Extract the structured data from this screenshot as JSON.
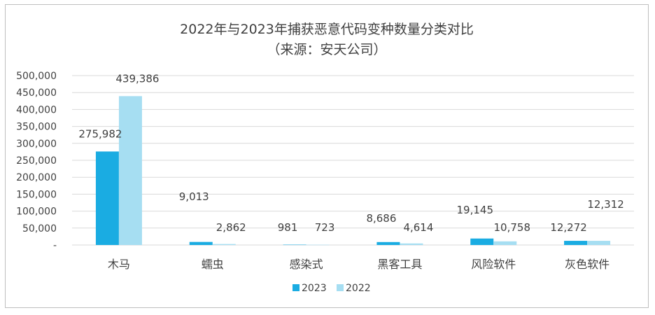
{
  "chart_data": {
    "type": "bar",
    "title": "2022年与2023年捕获恶意代码变种数量分类对比",
    "subtitle": "（来源：安天公司）",
    "categories": [
      "木马",
      "蠕虫",
      "感染式",
      "黑客工具",
      "风险软件",
      "灰色软件"
    ],
    "series": [
      {
        "name": "2023",
        "color": "#1aace2",
        "values": [
          275982,
          9013,
          981,
          8686,
          19145,
          12272
        ],
        "labels": [
          "275,982",
          "9,013",
          "981",
          "8,686",
          "19,145",
          "12,272"
        ]
      },
      {
        "name": "2022",
        "color": "#a6def2",
        "values": [
          439386,
          2862,
          723,
          4614,
          10758,
          12312
        ],
        "labels": [
          "439,386",
          "2,862",
          "723",
          "4,614",
          "10,758",
          "12,312"
        ]
      }
    ],
    "yticks": [
      0,
      50000,
      100000,
      150000,
      200000,
      250000,
      300000,
      350000,
      400000,
      450000,
      500000
    ],
    "ytick_labels": [
      "-",
      "50,000",
      "100,000",
      "150,000",
      "200,000",
      "250,000",
      "300,000",
      "350,000",
      "400,000",
      "450,000",
      "500,000"
    ],
    "ylim": [
      0,
      500000
    ],
    "grid": true,
    "legend": "bottom"
  }
}
